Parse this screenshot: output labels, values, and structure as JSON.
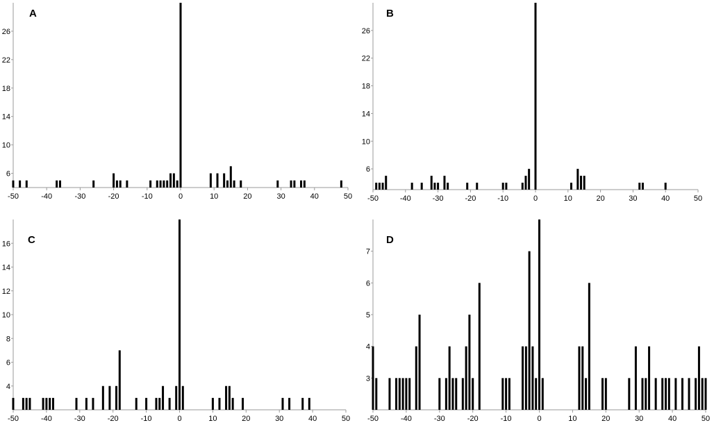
{
  "chart_data": [
    {
      "type": "bar",
      "panel_label": "A",
      "xlim": [
        -50,
        50
      ],
      "ylim": [
        4,
        30
      ],
      "xticks": [
        -50,
        -40,
        -30,
        -20,
        -10,
        0,
        10,
        20,
        30,
        40,
        50
      ],
      "yticks": [
        6,
        10,
        14,
        18,
        22,
        26
      ],
      "grid": false,
      "x": [
        -50,
        -48,
        -46,
        -37,
        -36,
        -26,
        -20,
        -19,
        -18,
        -16,
        -9,
        -7,
        -6,
        -5,
        -4,
        -3,
        -2,
        -1,
        0,
        9,
        11,
        13,
        14,
        15,
        16,
        18,
        29,
        33,
        34,
        36,
        37,
        48
      ],
      "values": [
        5,
        5,
        5,
        5,
        5,
        5,
        6,
        5,
        5,
        5,
        5,
        5,
        5,
        5,
        5,
        6,
        6,
        5,
        30,
        6,
        6,
        6,
        5,
        7,
        5,
        5,
        5,
        5,
        5,
        5,
        5,
        5
      ]
    },
    {
      "type": "bar",
      "panel_label": "B",
      "xlim": [
        -50,
        50
      ],
      "ylim": [
        3,
        30
      ],
      "xticks": [
        -50,
        -40,
        -30,
        -20,
        -10,
        0,
        10,
        20,
        30,
        40,
        50
      ],
      "yticks": [
        6,
        10,
        14,
        18,
        22,
        26
      ],
      "grid": false,
      "x": [
        -49,
        -48,
        -47,
        -46,
        -38,
        -35,
        -32,
        -31,
        -30,
        -28,
        -27,
        -21,
        -18,
        -10,
        -9,
        -4,
        -3,
        -2,
        0,
        11,
        13,
        14,
        15,
        32,
        33,
        40
      ],
      "values": [
        4,
        4,
        4,
        5,
        4,
        4,
        5,
        4,
        4,
        5,
        4,
        4,
        4,
        4,
        4,
        4,
        5,
        6,
        30,
        4,
        6,
        5,
        5,
        4,
        4,
        4
      ]
    },
    {
      "type": "bar",
      "panel_label": "C",
      "xlim": [
        -50,
        50
      ],
      "ylim": [
        2,
        18
      ],
      "xticks": [
        -50,
        -40,
        -30,
        -20,
        -10,
        0,
        10,
        20,
        30,
        40,
        50
      ],
      "yticks": [
        4,
        6,
        8,
        10,
        12,
        14,
        16
      ],
      "grid": false,
      "x": [
        -50,
        -47,
        -46,
        -45,
        -41,
        -40,
        -39,
        -38,
        -31,
        -28,
        -26,
        -23,
        -21,
        -19,
        -18,
        -13,
        -10,
        -7,
        -6,
        -5,
        -3,
        -1,
        0,
        1,
        10,
        12,
        14,
        15,
        16,
        19,
        31,
        33,
        37,
        39
      ],
      "values": [
        3,
        3,
        3,
        3,
        3,
        3,
        3,
        3,
        3,
        3,
        3,
        4,
        4,
        4,
        7,
        3,
        3,
        3,
        3,
        4,
        3,
        4,
        18,
        4,
        3,
        3,
        4,
        4,
        3,
        3,
        3,
        3,
        3,
        3
      ]
    },
    {
      "type": "bar",
      "panel_label": "D",
      "xlim": [
        -50,
        50
      ],
      "ylim": [
        2,
        8
      ],
      "xticks": [
        -50,
        -40,
        -30,
        -20,
        -10,
        0,
        10,
        20,
        30,
        40,
        50
      ],
      "yticks": [
        3,
        4,
        5,
        6,
        7
      ],
      "grid": false,
      "x": [
        -50,
        -49,
        -45,
        -43,
        -42,
        -41,
        -40,
        -39,
        -37,
        -36,
        -30,
        -28,
        -27,
        -26,
        -25,
        -23,
        -22,
        -21,
        -20,
        -18,
        -11,
        -10,
        -9,
        -5,
        -4,
        -3,
        -2,
        -1,
        0,
        1,
        12,
        13,
        14,
        15,
        19,
        20,
        27,
        29,
        31,
        32,
        33,
        35,
        37,
        38,
        39,
        41,
        43,
        45,
        47,
        48,
        49,
        50
      ],
      "values": [
        4,
        3,
        3,
        3,
        3,
        3,
        3,
        3,
        4,
        5,
        3,
        3,
        4,
        3,
        3,
        3,
        4,
        5,
        3,
        6,
        3,
        3,
        3,
        4,
        4,
        7,
        4,
        3,
        8,
        3,
        4,
        4,
        3,
        6,
        3,
        3,
        3,
        4,
        3,
        3,
        4,
        3,
        3,
        3,
        3,
        3,
        3,
        3,
        3,
        4,
        3,
        3
      ]
    }
  ]
}
